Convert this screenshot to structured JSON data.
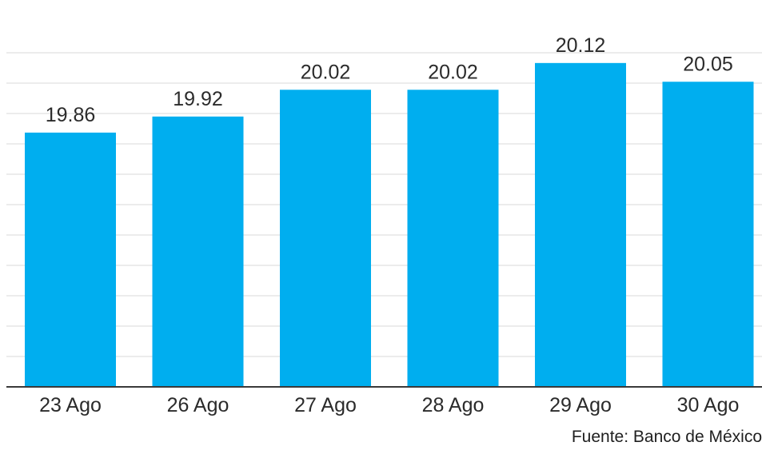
{
  "chart_data": {
    "type": "bar",
    "categories": [
      "23 Ago",
      "26 Ago",
      "27 Ago",
      "28 Ago",
      "29 Ago",
      "30 Ago"
    ],
    "values": [
      19.86,
      19.92,
      20.02,
      20.02,
      20.12,
      20.05
    ],
    "value_labels": [
      "19.86",
      "19.92",
      "20.02",
      "20.02",
      "20.12",
      "20.05"
    ],
    "title": "",
    "xlabel": "",
    "ylabel": "",
    "ylim": [
      18.91,
      20.23
    ],
    "grid": true,
    "bar_color": "#00aeef"
  },
  "source": "Fuente: Banco de México"
}
